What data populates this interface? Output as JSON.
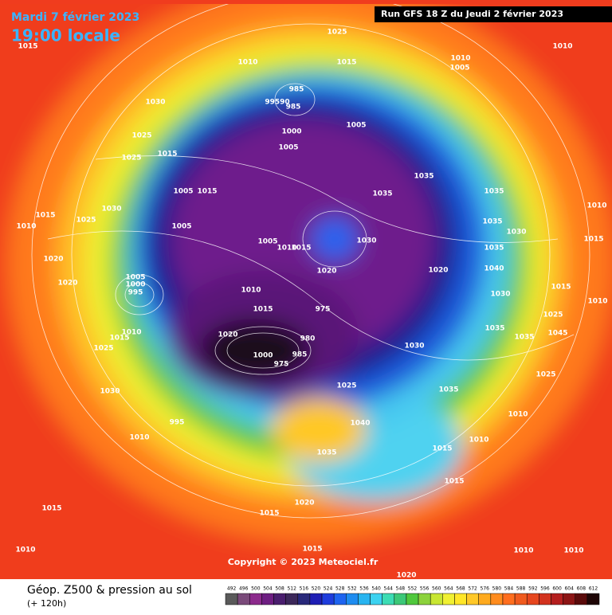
{
  "header": {
    "date": "Mardi 7 février 2023",
    "time": "19:00 locale",
    "run": "Run GFS 18 Z du Jeudi 2 février 2023"
  },
  "footer": {
    "title": "Géop. Z500 & pression au sol",
    "lead": "(+ 120h)",
    "copyright": "Copyright © 2023 Meteociel.fr"
  },
  "legend": {
    "ticks": [
      492,
      496,
      500,
      504,
      508,
      512,
      516,
      520,
      524,
      528,
      532,
      536,
      540,
      544,
      548,
      552,
      556,
      560,
      564,
      568,
      572,
      576,
      580,
      584,
      588,
      592,
      596,
      600,
      604,
      608,
      612
    ],
    "colors": [
      "#5a5a5a",
      "#7a4a7a",
      "#8c2a8c",
      "#6e1e82",
      "#4a1e6e",
      "#3c285a",
      "#28287a",
      "#1e1eb4",
      "#1e3cdc",
      "#1e64f0",
      "#1e8cf0",
      "#28b4f0",
      "#3cd2f0",
      "#3cdcb4",
      "#3cc878",
      "#50c83c",
      "#8cd23c",
      "#c8e632",
      "#f0f032",
      "#ffe628",
      "#ffc828",
      "#ffaa1e",
      "#ff8c1e",
      "#ff6e1e",
      "#f05a1e",
      "#e6461e",
      "#d2321e",
      "#b41e1e",
      "#8c1414",
      "#5a0a0a",
      "#1e0505"
    ]
  },
  "isobar_labels": [
    "1025",
    "1015",
    "1010",
    "1015",
    "1010",
    "1005",
    "1010",
    "1030",
    "985",
    "99590",
    "985",
    "1005",
    "1000",
    "1025",
    "1005",
    "1015",
    "1035",
    "1035",
    "1025",
    "1005",
    "1015",
    "1035",
    "1030",
    "1015",
    "1025",
    "1010",
    "1005",
    "1035",
    "1030",
    "1030",
    "1005",
    "1010",
    "1015",
    "1010",
    "1035",
    "1015",
    "1020",
    "1020",
    "1040",
    "1020",
    "1005",
    "1000",
    "995",
    "1020",
    "1010",
    "1015",
    "975",
    "1030",
    "1015",
    "1010",
    "1035",
    "1025",
    "1010",
    "1015",
    "1020",
    "980",
    "1035",
    "1045",
    "1025",
    "1000",
    "985",
    "1030",
    "975",
    "1025",
    "1035",
    "1025",
    "1030",
    "1040",
    "1010",
    "995",
    "1010",
    "1010",
    "1035",
    "1015",
    "1015",
    "1020",
    "1015",
    "1015",
    "1015",
    "1010",
    "1010",
    "1010",
    "1020"
  ]
}
